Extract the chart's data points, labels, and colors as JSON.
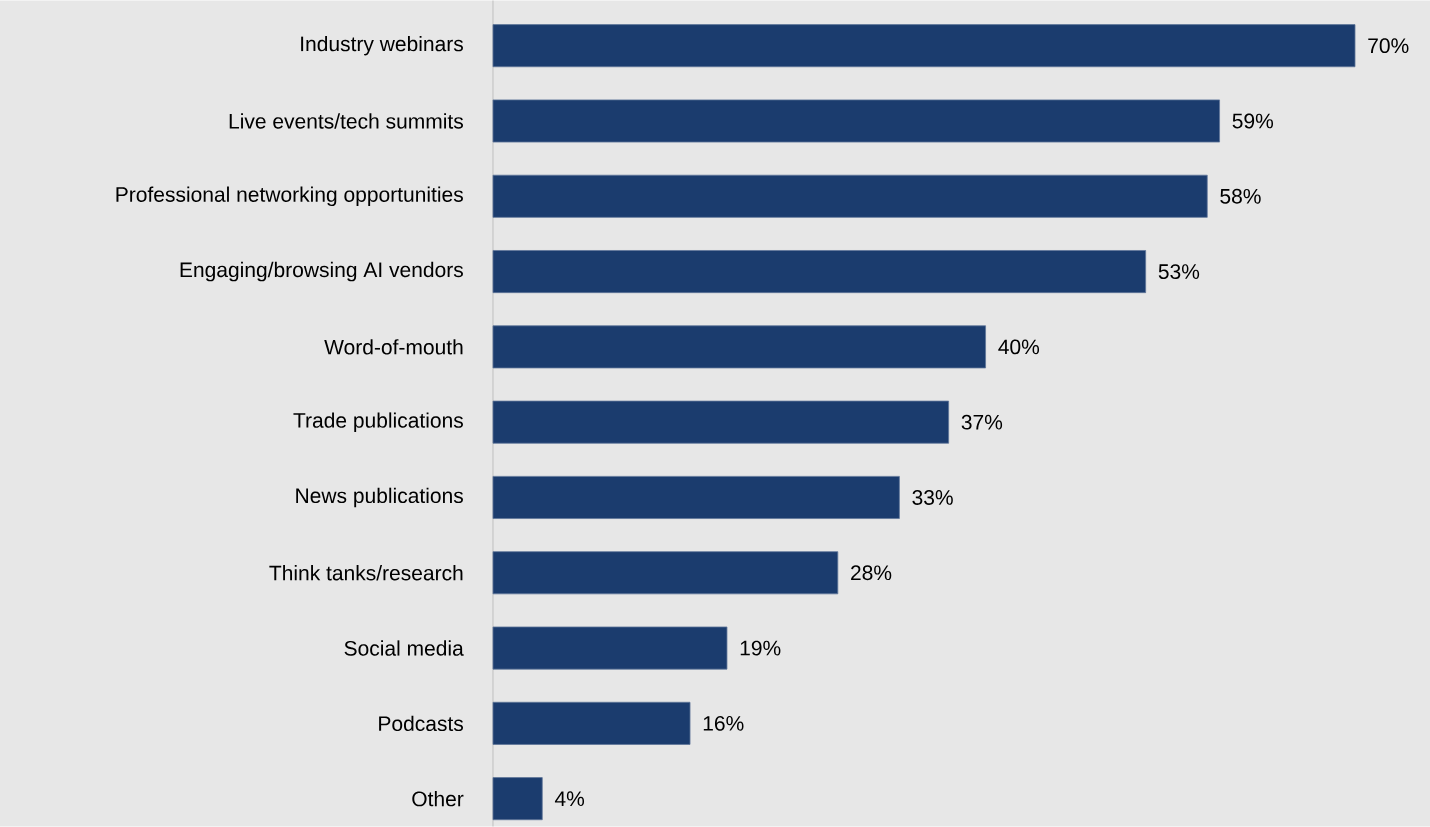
{
  "chart_data": {
    "type": "bar",
    "orientation": "horizontal",
    "categories": [
      "Industry webinars",
      "Live events/tech summits",
      "Professional networking opportunities",
      "Engaging/browsing AI vendors",
      "Word-of-mouth",
      "Trade publications",
      "News publications",
      "Think tanks/research",
      "Social media",
      "Podcasts",
      "Other"
    ],
    "values": [
      70,
      59,
      58,
      53,
      40,
      37,
      33,
      28,
      19,
      16,
      4
    ],
    "value_labels": [
      "70%",
      "59%",
      "58%",
      "53%",
      "40%",
      "37%",
      "33%",
      "28%",
      "19%",
      "16%",
      "4%"
    ],
    "color": "#1b3c6e"
  }
}
